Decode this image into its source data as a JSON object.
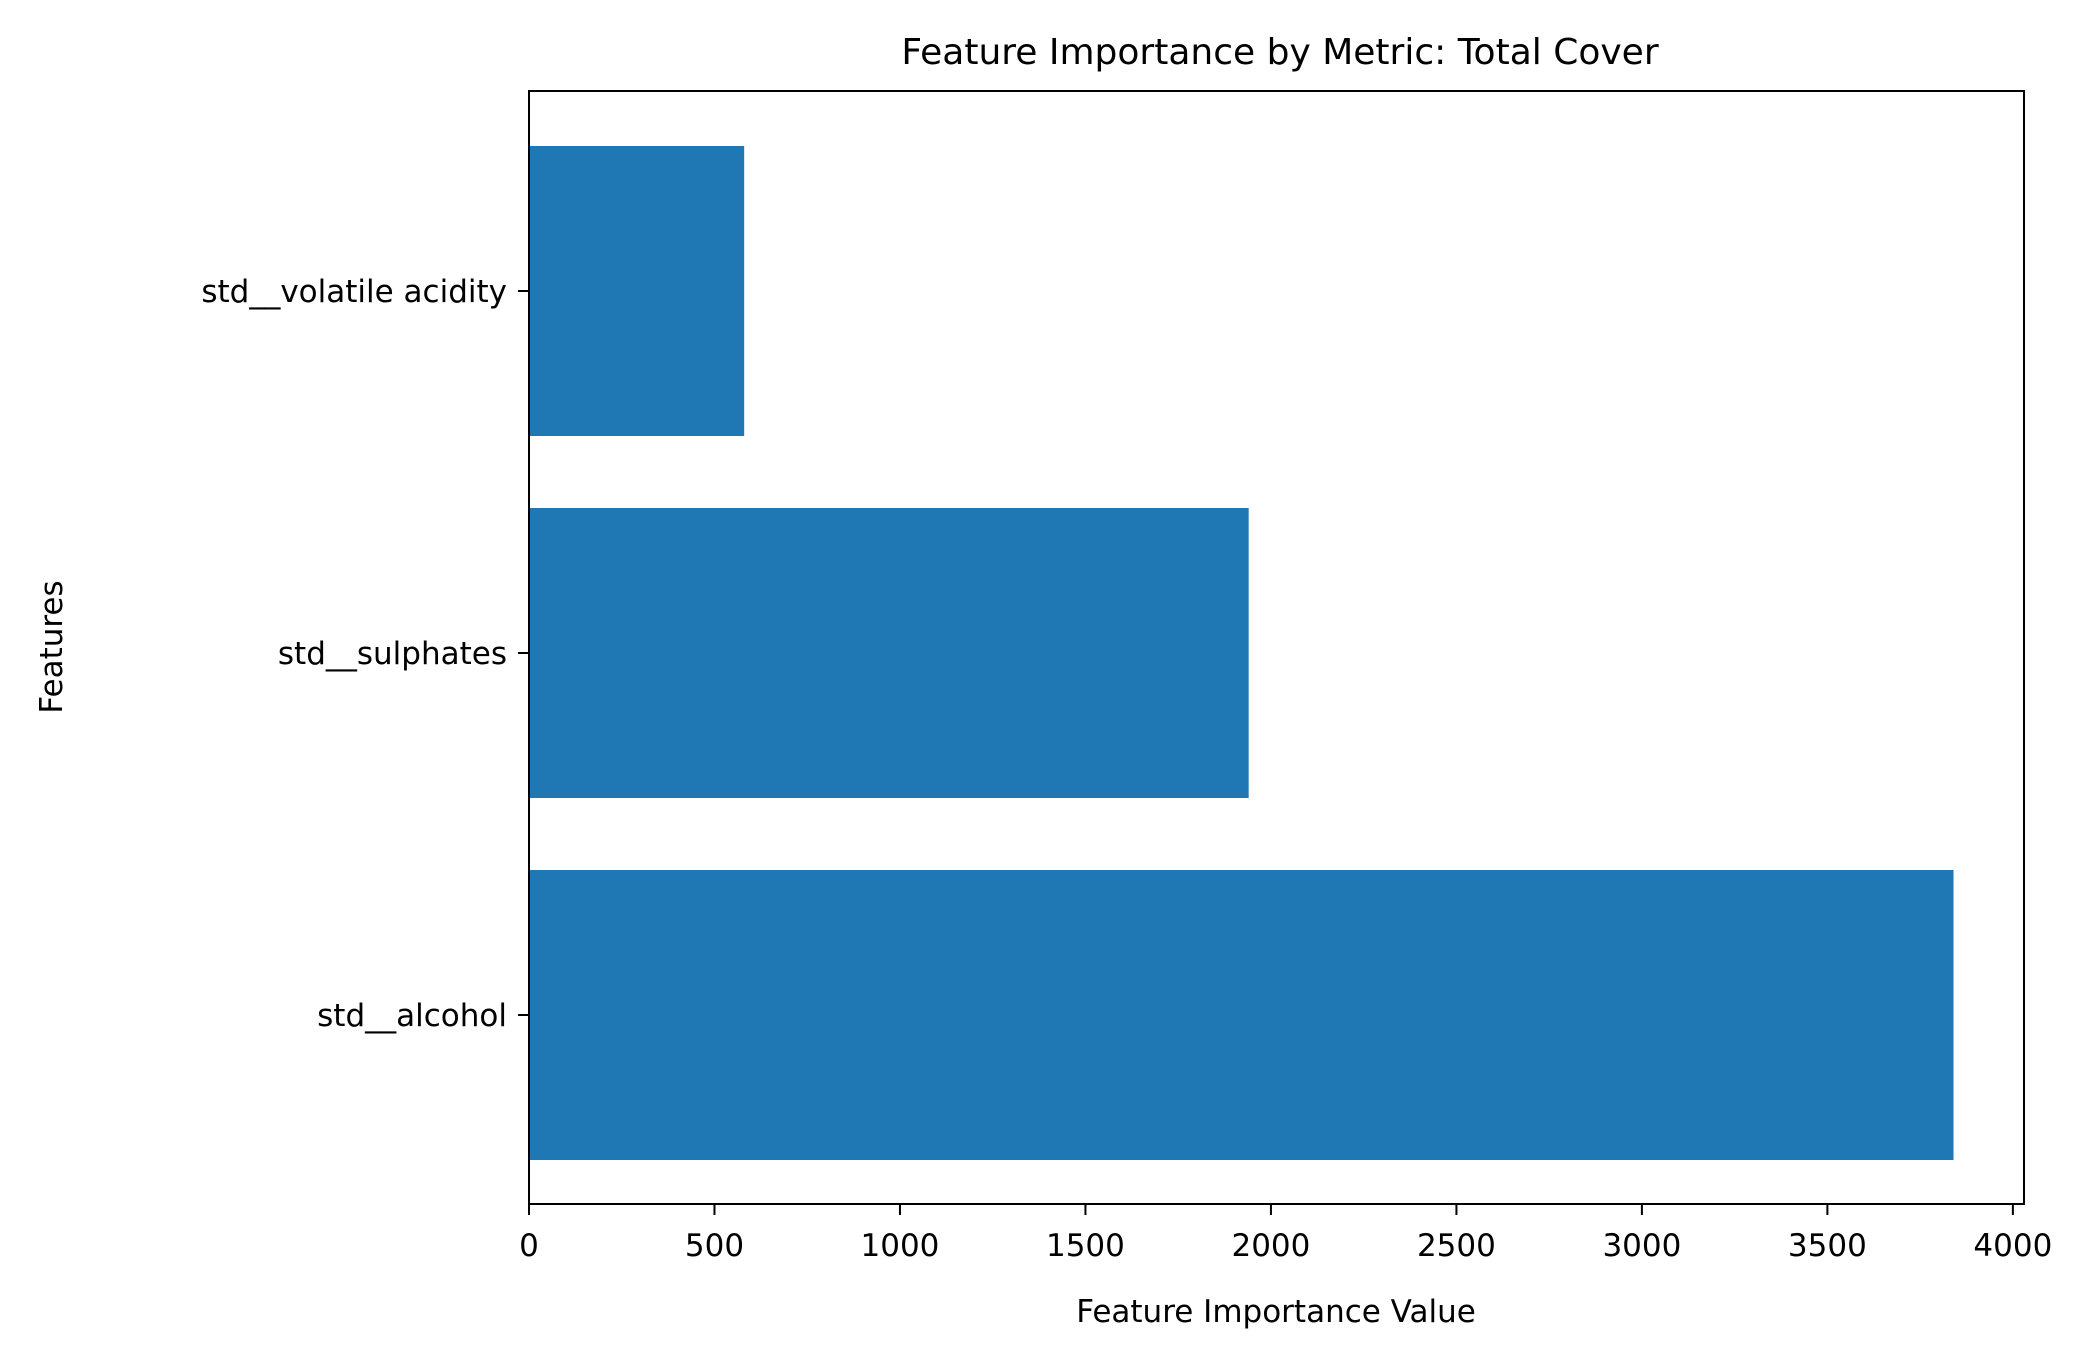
{
  "chart_data": {
    "type": "bar",
    "orientation": "horizontal",
    "title": "Feature Importance by Metric: Total Cover",
    "xlabel": "Feature Importance Value",
    "ylabel": "Features",
    "categories": [
      "std__alcohol",
      "std__sulphates",
      "std__volatile acidity"
    ],
    "values": [
      3840,
      1940,
      580
    ],
    "xlim": [
      0,
      4030
    ],
    "xticks": [
      0,
      500,
      1000,
      1500,
      2000,
      2500,
      3000,
      3500,
      4000
    ],
    "xtick_labels": [
      "0",
      "500",
      "1000",
      "1500",
      "2000",
      "2500",
      "3000",
      "3500",
      "4000"
    ],
    "bar_color": "#1f77b4",
    "grid": false,
    "legend": "none"
  }
}
